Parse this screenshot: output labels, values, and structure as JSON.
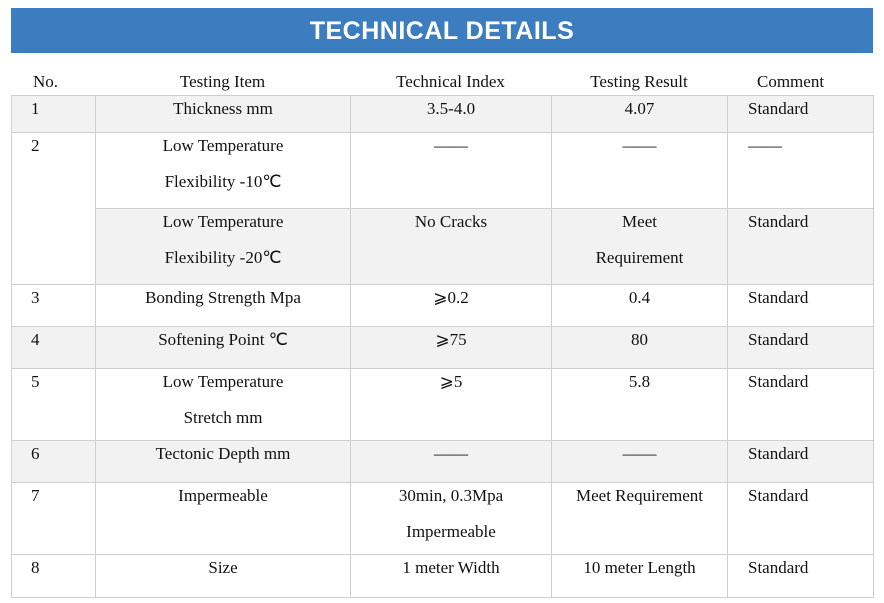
{
  "header": {
    "title": "TECHNICAL DETAILS"
  },
  "table": {
    "columns": [
      "No.",
      "Testing Item",
      "Technical Index",
      "Testing Result",
      "Comment"
    ],
    "rows": [
      [
        "1",
        "Thickness mm",
        "3.5-4.0",
        "4.07",
        "Standard"
      ],
      [
        "2",
        [
          "Low Temperature",
          "Flexibility -10℃"
        ],
        "——",
        "——",
        "——"
      ],
      [
        [
          "Low Temperature",
          "Flexibility -20℃"
        ],
        "No Cracks",
        [
          "Meet",
          "Requirement"
        ],
        "Standard"
      ],
      [
        "3",
        "Bonding Strength Mpa",
        "⩾0.2",
        "0.4",
        "Standard"
      ],
      [
        "4",
        "Softening Point ℃",
        "⩾75",
        "80",
        "Standard"
      ],
      [
        "5",
        [
          "Low Temperature",
          "Stretch mm"
        ],
        "⩾5",
        "5.8",
        "Standard"
      ],
      [
        "6",
        "Tectonic Depth mm",
        "——",
        "——",
        "Standard"
      ],
      [
        "7",
        "Impermeable",
        [
          "30min, 0.3Mpa",
          "Impermeable"
        ],
        "Meet Requirement",
        "Standard"
      ],
      [
        "8",
        "Size",
        "1 meter Width",
        "10 meter Length",
        "Standard"
      ]
    ]
  }
}
